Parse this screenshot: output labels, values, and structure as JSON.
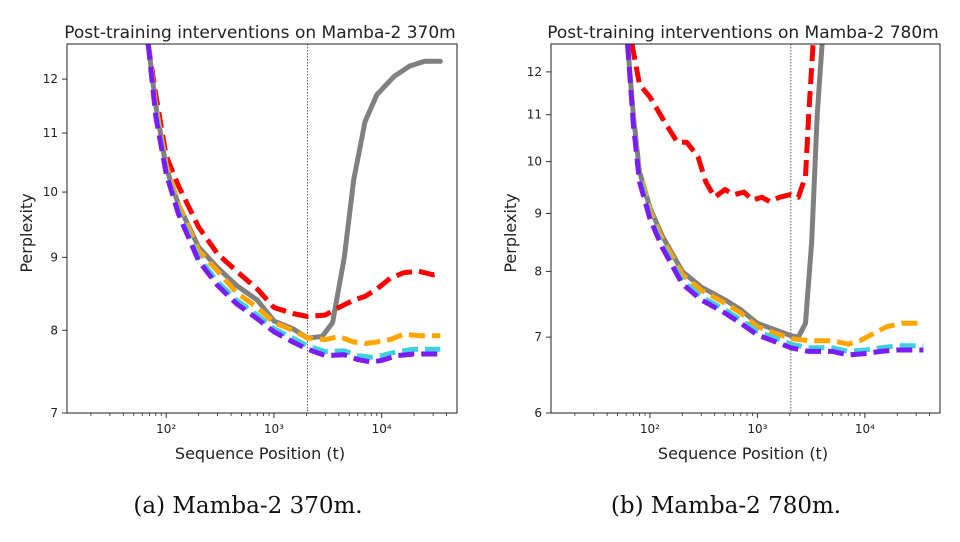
{
  "chart_data": [
    {
      "type": "line",
      "title": "Post-training interventions on Mamba-2 370m",
      "xlabel": "Sequence Position (t)",
      "ylabel": "Perplexity",
      "caption": "(a) Mamba-2 370m.",
      "xscale": "log",
      "yscale": "log",
      "xlim": [
        12,
        50000
      ],
      "ylim": [
        7,
        12.7
      ],
      "xticks": [
        {
          "v": 100,
          "label": "10²"
        },
        {
          "v": 1000,
          "label": "10³"
        },
        {
          "v": 10000,
          "label": "10⁴"
        }
      ],
      "yticks": [
        {
          "v": 7,
          "label": "7"
        },
        {
          "v": 8,
          "label": "8"
        },
        {
          "v": 9,
          "label": "9"
        },
        {
          "v": 10,
          "label": "10"
        },
        {
          "v": 11,
          "label": "11"
        },
        {
          "v": 12,
          "label": "12"
        }
      ],
      "vline": 2048,
      "grid": false,
      "series": [
        {
          "color": "#808080",
          "style": "solid",
          "points": [
            [
              68,
              12.7
            ],
            [
              80,
              11.5
            ],
            [
              100,
              10.4
            ],
            [
              130,
              9.8
            ],
            [
              200,
              9.15
            ],
            [
              300,
              8.85
            ],
            [
              450,
              8.6
            ],
            [
              700,
              8.4
            ],
            [
              1000,
              8.12
            ],
            [
              1500,
              8.02
            ],
            [
              2048,
              7.9
            ],
            [
              2800,
              7.92
            ],
            [
              3500,
              8.1
            ],
            [
              4500,
              9.0
            ],
            [
              5500,
              10.2
            ],
            [
              7000,
              11.2
            ],
            [
              9000,
              11.7
            ],
            [
              13000,
              12.05
            ],
            [
              18000,
              12.25
            ],
            [
              25000,
              12.35
            ],
            [
              35000,
              12.35
            ]
          ]
        },
        {
          "color": "#ff0000",
          "style": "dashed",
          "points": [
            [
              68,
              12.7
            ],
            [
              80,
              11.7
            ],
            [
              100,
              10.6
            ],
            [
              130,
              10.1
            ],
            [
              200,
              9.45
            ],
            [
              300,
              9.05
            ],
            [
              450,
              8.8
            ],
            [
              700,
              8.55
            ],
            [
              1000,
              8.3
            ],
            [
              1500,
              8.22
            ],
            [
              2048,
              8.18
            ],
            [
              3000,
              8.2
            ],
            [
              4000,
              8.3
            ],
            [
              5500,
              8.4
            ],
            [
              7000,
              8.45
            ],
            [
              9000,
              8.55
            ],
            [
              12000,
              8.7
            ],
            [
              16000,
              8.78
            ],
            [
              22000,
              8.8
            ],
            [
              30000,
              8.75
            ],
            [
              35000,
              8.77
            ]
          ]
        },
        {
          "color": "#ffa500",
          "style": "dashed",
          "points": [
            [
              68,
              12.7
            ],
            [
              80,
              11.5
            ],
            [
              100,
              10.45
            ],
            [
              130,
              9.8
            ],
            [
              200,
              9.1
            ],
            [
              300,
              8.8
            ],
            [
              450,
              8.5
            ],
            [
              700,
              8.3
            ],
            [
              1000,
              8.1
            ],
            [
              1500,
              8.0
            ],
            [
              2048,
              7.9
            ],
            [
              3000,
              7.88
            ],
            [
              4000,
              7.92
            ],
            [
              5500,
              7.85
            ],
            [
              7000,
              7.83
            ],
            [
              9000,
              7.85
            ],
            [
              12000,
              7.88
            ],
            [
              16000,
              7.95
            ],
            [
              22000,
              7.93
            ],
            [
              35000,
              7.93
            ]
          ]
        },
        {
          "color": "#3fd0e0",
          "style": "dashed",
          "points": [
            [
              68,
              12.7
            ],
            [
              80,
              11.4
            ],
            [
              100,
              10.35
            ],
            [
              130,
              9.7
            ],
            [
              200,
              9.0
            ],
            [
              300,
              8.65
            ],
            [
              450,
              8.4
            ],
            [
              700,
              8.2
            ],
            [
              1000,
              8.02
            ],
            [
              1500,
              7.9
            ],
            [
              2048,
              7.8
            ],
            [
              3000,
              7.73
            ],
            [
              4500,
              7.74
            ],
            [
              6000,
              7.68
            ],
            [
              8000,
              7.66
            ],
            [
              10000,
              7.68
            ],
            [
              14000,
              7.73
            ],
            [
              20000,
              7.76
            ],
            [
              35000,
              7.76
            ]
          ]
        },
        {
          "color": "#7b1cf2",
          "style": "dashed",
          "points": [
            [
              68,
              12.7
            ],
            [
              80,
              11.3
            ],
            [
              100,
              10.3
            ],
            [
              130,
              9.65
            ],
            [
              200,
              8.95
            ],
            [
              300,
              8.6
            ],
            [
              450,
              8.35
            ],
            [
              700,
              8.15
            ],
            [
              1000,
              7.98
            ],
            [
              1500,
              7.85
            ],
            [
              2048,
              7.76
            ],
            [
              3000,
              7.68
            ],
            [
              4500,
              7.69
            ],
            [
              6000,
              7.63
            ],
            [
              8000,
              7.6
            ],
            [
              10000,
              7.62
            ],
            [
              14000,
              7.68
            ],
            [
              20000,
              7.7
            ],
            [
              35000,
              7.7
            ]
          ]
        }
      ]
    },
    {
      "type": "line",
      "title": "Post-training interventions on Mamba-2 780m",
      "xlabel": "Sequence Position (t)",
      "ylabel": "Perplexity",
      "caption": "(b) Mamba-2 780m.",
      "xscale": "log",
      "yscale": "log",
      "xlim": [
        12,
        50000
      ],
      "ylim": [
        6,
        12.7
      ],
      "xticks": [
        {
          "v": 100,
          "label": "10²"
        },
        {
          "v": 1000,
          "label": "10³"
        },
        {
          "v": 10000,
          "label": "10⁴"
        }
      ],
      "yticks": [
        {
          "v": 6,
          "label": "6"
        },
        {
          "v": 7,
          "label": "7"
        },
        {
          "v": 8,
          "label": "8"
        },
        {
          "v": 9,
          "label": "9"
        },
        {
          "v": 10,
          "label": "10"
        },
        {
          "v": 11,
          "label": "11"
        },
        {
          "v": 12,
          "label": "12"
        }
      ],
      "vline": 2048,
      "grid": false,
      "series": [
        {
          "color": "#808080",
          "style": "solid",
          "points": [
            [
              62,
              12.7
            ],
            [
              70,
              11.0
            ],
            [
              80,
              9.8
            ],
            [
              100,
              9.1
            ],
            [
              130,
              8.6
            ],
            [
              200,
              8.0
            ],
            [
              300,
              7.75
            ],
            [
              500,
              7.55
            ],
            [
              700,
              7.4
            ],
            [
              1000,
              7.2
            ],
            [
              1500,
              7.1
            ],
            [
              2048,
              7.02
            ],
            [
              2400,
              7.0
            ],
            [
              2800,
              7.2
            ],
            [
              3200,
              8.5
            ],
            [
              3600,
              11.0
            ],
            [
              4000,
              12.7
            ]
          ]
        },
        {
          "color": "#ff0000",
          "style": "dashed",
          "points": [
            [
              68,
              12.7
            ],
            [
              80,
              11.7
            ],
            [
              100,
              11.4
            ],
            [
              140,
              10.8
            ],
            [
              180,
              10.4
            ],
            [
              220,
              10.4
            ],
            [
              280,
              10.1
            ],
            [
              330,
              9.6
            ],
            [
              400,
              9.3
            ],
            [
              500,
              9.45
            ],
            [
              600,
              9.35
            ],
            [
              750,
              9.4
            ],
            [
              900,
              9.25
            ],
            [
              1100,
              9.3
            ],
            [
              1300,
              9.22
            ],
            [
              1600,
              9.3
            ],
            [
              2000,
              9.35
            ],
            [
              2400,
              9.3
            ],
            [
              2800,
              9.7
            ],
            [
              3000,
              11.0
            ],
            [
              3300,
              12.7
            ]
          ]
        },
        {
          "color": "#ffa500",
          "style": "dashed",
          "points": [
            [
              62,
              12.7
            ],
            [
              70,
              11.0
            ],
            [
              80,
              9.8
            ],
            [
              100,
              9.05
            ],
            [
              130,
              8.55
            ],
            [
              200,
              7.95
            ],
            [
              300,
              7.7
            ],
            [
              500,
              7.5
            ],
            [
              700,
              7.35
            ],
            [
              1000,
              7.15
            ],
            [
              1500,
              7.05
            ],
            [
              2048,
              6.98
            ],
            [
              3000,
              6.95
            ],
            [
              5000,
              6.95
            ],
            [
              7000,
              6.9
            ],
            [
              9000,
              6.95
            ],
            [
              12000,
              7.05
            ],
            [
              16000,
              7.15
            ],
            [
              22000,
              7.2
            ],
            [
              35000,
              7.2
            ]
          ]
        },
        {
          "color": "#3fd0e0",
          "style": "dashed",
          "points": [
            [
              62,
              12.7
            ],
            [
              70,
              10.9
            ],
            [
              80,
              9.7
            ],
            [
              100,
              8.95
            ],
            [
              130,
              8.45
            ],
            [
              200,
              7.85
            ],
            [
              300,
              7.6
            ],
            [
              500,
              7.4
            ],
            [
              700,
              7.25
            ],
            [
              1000,
              7.08
            ],
            [
              1500,
              6.98
            ],
            [
              2048,
              6.9
            ],
            [
              3000,
              6.85
            ],
            [
              5000,
              6.85
            ],
            [
              7000,
              6.8
            ],
            [
              10000,
              6.82
            ],
            [
              14000,
              6.85
            ],
            [
              20000,
              6.88
            ],
            [
              35000,
              6.88
            ]
          ]
        },
        {
          "color": "#7b1cf2",
          "style": "dashed",
          "points": [
            [
              62,
              12.7
            ],
            [
              70,
              10.8
            ],
            [
              80,
              9.6
            ],
            [
              100,
              8.9
            ],
            [
              130,
              8.4
            ],
            [
              200,
              7.8
            ],
            [
              300,
              7.55
            ],
            [
              500,
              7.35
            ],
            [
              700,
              7.2
            ],
            [
              1000,
              7.03
            ],
            [
              1500,
              6.93
            ],
            [
              2048,
              6.85
            ],
            [
              3000,
              6.8
            ],
            [
              5000,
              6.8
            ],
            [
              7000,
              6.75
            ],
            [
              10000,
              6.77
            ],
            [
              14000,
              6.8
            ],
            [
              20000,
              6.82
            ],
            [
              35000,
              6.82
            ]
          ]
        }
      ]
    }
  ]
}
